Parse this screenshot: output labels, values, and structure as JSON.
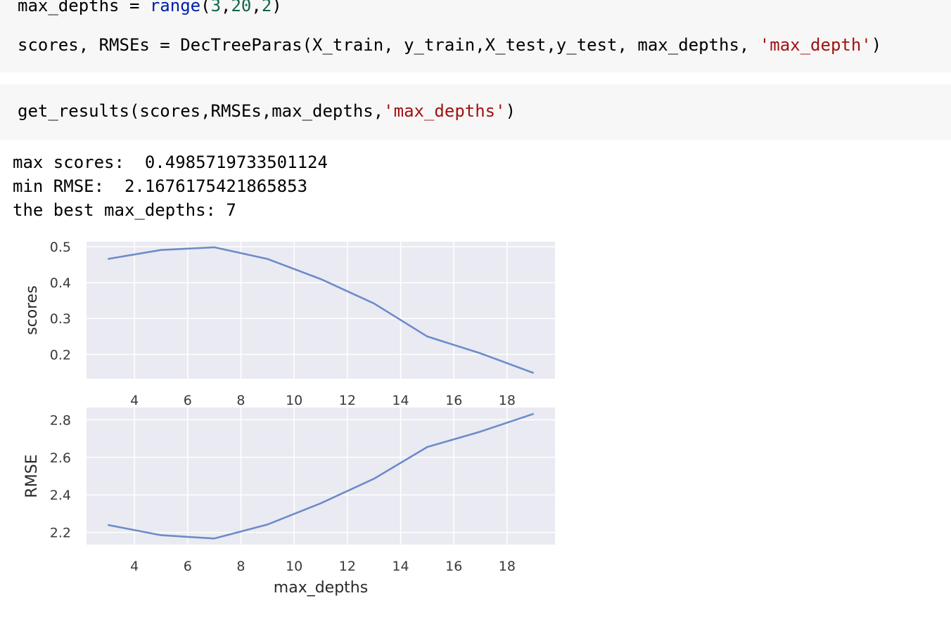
{
  "cells": {
    "cell1": {
      "line1": {
        "var": "max_depths",
        "op": " = ",
        "func": "range",
        "open": "(",
        "a": "3",
        "c1": ",",
        "b": "20",
        "c2": ",",
        "c": "2",
        "close": ")"
      },
      "line2": {
        "pre": "scores, RMSEs = DecTreeParas(X_train, y_train,X_test,y_test, max_depths, ",
        "str": "'max_depth'",
        "post": ")"
      }
    },
    "cell2": {
      "line1": {
        "pre": "get_results(scores,RMSEs,max_depths,",
        "str": "'max_depths'",
        "post": ")"
      }
    }
  },
  "output": {
    "line1": "max scores:  0.4985719733501124",
    "line2": "min RMSE:  2.1676175421865853",
    "line3": "the best max_depths: 7"
  },
  "chart_data": [
    {
      "type": "line",
      "xlabel": "",
      "ylabel": "scores",
      "x": [
        3,
        5,
        7,
        9,
        11,
        13,
        15,
        17,
        19
      ],
      "values": [
        0.466,
        0.491,
        0.4986,
        0.466,
        0.41,
        0.342,
        0.25,
        0.203,
        0.148
      ],
      "xticks": [
        4,
        6,
        8,
        10,
        12,
        14,
        16,
        18
      ],
      "yticks": [
        0.2,
        0.3,
        0.4,
        0.5
      ],
      "ytick_labels": [
        "0.2",
        "0.3",
        "0.4",
        "0.5"
      ],
      "xlim": [
        2.2,
        19.8
      ],
      "ylim": [
        0.132,
        0.514
      ],
      "grid": true
    },
    {
      "type": "line",
      "xlabel": "max_depths",
      "ylabel": "RMSE",
      "x": [
        3,
        5,
        7,
        9,
        11,
        13,
        15,
        17,
        19
      ],
      "values": [
        2.24,
        2.185,
        2.1676,
        2.242,
        2.355,
        2.486,
        2.655,
        2.737,
        2.832
      ],
      "xticks": [
        4,
        6,
        8,
        10,
        12,
        14,
        16,
        18
      ],
      "yticks": [
        2.2,
        2.4,
        2.6,
        2.8
      ],
      "ytick_labels": [
        "2.2",
        "2.4",
        "2.6",
        "2.8"
      ],
      "xlim": [
        2.2,
        19.8
      ],
      "ylim": [
        2.135,
        2.865
      ],
      "grid": true
    }
  ],
  "colors": {
    "cell_bg": "#f7f7f7",
    "keyword": "#0020a8",
    "number": "#116644",
    "string": "#a11111",
    "plot_bg": "#eaeaf2",
    "line": "#6d8bc8",
    "grid": "#ffffff"
  }
}
